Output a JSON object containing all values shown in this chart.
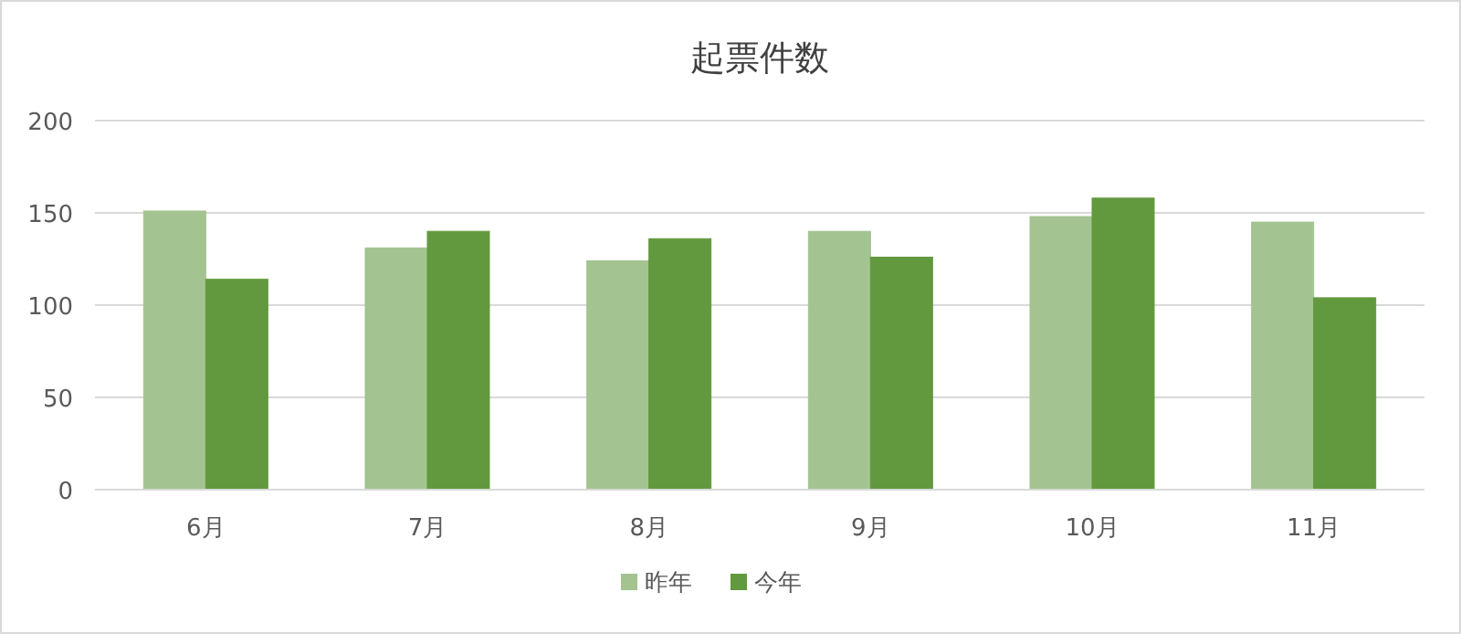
{
  "chart_data": {
    "type": "bar",
    "title": "起票件数",
    "categories": [
      "6月",
      "7月",
      "8月",
      "9月",
      "10月",
      "11月"
    ],
    "series": [
      {
        "name": "昨年",
        "color": "#a3c490",
        "values": [
          151,
          131,
          124,
          140,
          148,
          145
        ]
      },
      {
        "name": "今年",
        "color": "#62993e",
        "values": [
          114,
          140,
          136,
          126,
          158,
          104
        ]
      }
    ],
    "ylim": [
      0,
      200
    ],
    "yticks": [
      0,
      50,
      100,
      150,
      200
    ],
    "grid": "y",
    "legend": "bottom"
  }
}
